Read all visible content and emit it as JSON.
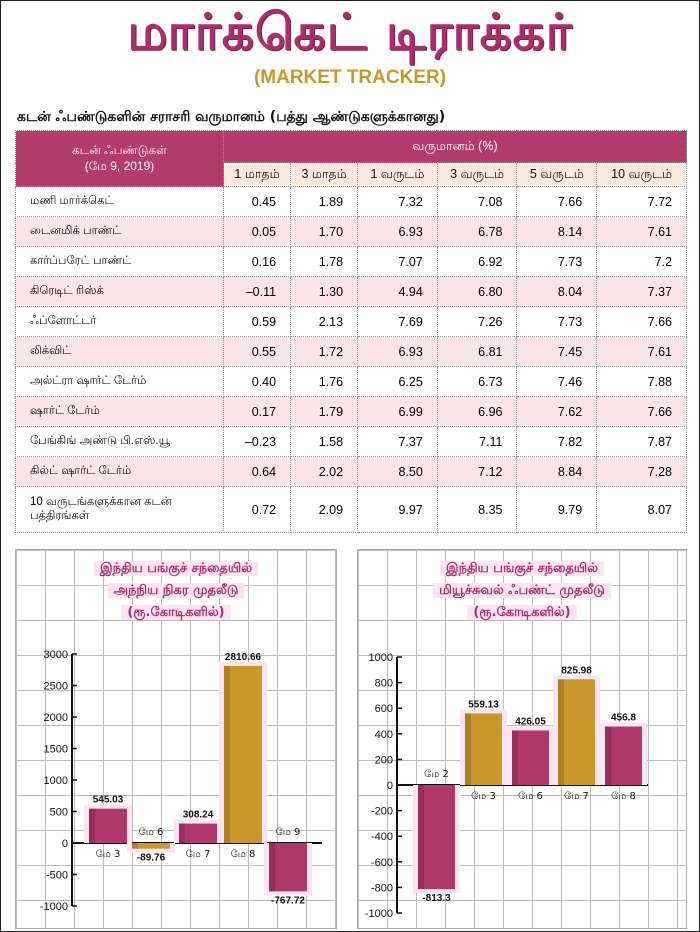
{
  "title": "மார்க்கெட் டிராக்கர்",
  "subtitle": "(MARKET TRACKER)",
  "heading": "கடன் ஃபண்டுகளின் சராசரி வருமானம் (பத்து ஆண்டுகளுக்கானது)",
  "table": {
    "name_header": "கடன் ஃபண்டுகள்",
    "date": "(மே 9, 2019)",
    "returns_header": "வருமானம் (%)",
    "columns": [
      "1 மாதம்",
      "3 மாதம்",
      "1 வருடம்",
      "3 வருடம்",
      "5 வருடம்",
      "10 வருடம்"
    ],
    "rows": [
      {
        "name": "மணி மார்க்கெட்",
        "values": [
          "0.45",
          "1.89",
          "7.32",
          "7.08",
          "7.66",
          "7.72"
        ]
      },
      {
        "name": "டைனமிக் பாண்ட்",
        "values": [
          "0.05",
          "1.70",
          "6.93",
          "6.78",
          "8.14",
          "7.61"
        ]
      },
      {
        "name": "கார்ப்பரேட் பாண்ட்",
        "values": [
          "0.16",
          "1.78",
          "7.07",
          "6.92",
          "7.73",
          "7.2"
        ]
      },
      {
        "name": "கிரெடிட் ரிஸ்க்",
        "values": [
          "–0.11",
          "1.30",
          "4.94",
          "6.80",
          "8.04",
          "7.37"
        ]
      },
      {
        "name": "ஃப்ளோட்டர்",
        "values": [
          "0.59",
          "2.13",
          "7.69",
          "7.26",
          "7.73",
          "7.66"
        ]
      },
      {
        "name": "லிக்விட்",
        "values": [
          "0.55",
          "1.72",
          "6.93",
          "6.81",
          "7.45",
          "7.61"
        ]
      },
      {
        "name": "அல்ட்ரா ஷார்ட் டேர்ம்",
        "values": [
          "0.40",
          "1.76",
          "6.25",
          "6.73",
          "7.46",
          "7.88"
        ]
      },
      {
        "name": "ஷார்ட் டேர்ம்",
        "values": [
          "0.17",
          "1.79",
          "6.99",
          "6.96",
          "7.62",
          "7.66"
        ]
      },
      {
        "name": "பேங்கிங் அண்டு பி.எஸ்.யூ",
        "values": [
          "–0.23",
          "1.58",
          "7.37",
          "7.11",
          "7.82",
          "7.87"
        ]
      },
      {
        "name": "கில்ட் ஷார்ட் டேர்ம்",
        "values": [
          "0.64",
          "2.02",
          "8.50",
          "7.12",
          "8.84",
          "7.28"
        ]
      },
      {
        "name": "10 வருடங்களுக்கான கடன் பத்திரங்கள்",
        "values": [
          "0.72",
          "2.09",
          "9.97",
          "8.35",
          "9.79",
          "8.07"
        ]
      }
    ]
  },
  "colors": {
    "magenta": "#b0396b",
    "gold": "#c9972c",
    "title": "#a8306a"
  },
  "chart_data": [
    {
      "type": "bar",
      "title": [
        "இந்திய பங்குச் சந்தையில்",
        "அந்நிய நிகர முதலீடு",
        "(ரூ.கோடிகளில்)"
      ],
      "categories": [
        "மே 3",
        "மே 6",
        "மே 7",
        "மே 8",
        "மே 9"
      ],
      "values": [
        545.03,
        -89.76,
        308.24,
        2810.66,
        -767.72
      ],
      "labels": [
        "545.03",
        "-89.76",
        "308.24",
        "2810.66",
        "-767.72"
      ],
      "bar_colors": [
        "magenta",
        "gold",
        "magenta",
        "gold",
        "magenta"
      ],
      "yticks": [
        "3000",
        "2500",
        "2000",
        "1500",
        "1000",
        "500",
        "0",
        "-500",
        "-1000"
      ],
      "ylim": [
        -1000,
        3000
      ],
      "grid": true
    },
    {
      "type": "bar",
      "title": [
        "இந்திய பங்குச் சந்தையில்",
        "மியூச்சுவல் ஃபண்ட் முதலீடு",
        "(ரூ.கோடிகளில்)"
      ],
      "categories": [
        "மே 2",
        "மே 3",
        "மே 6",
        "மே 7",
        "மே 8"
      ],
      "values": [
        -813.3,
        559.13,
        426.05,
        825.98,
        456.8
      ],
      "labels": [
        "-813.3",
        "559.13",
        "426.05",
        "825.98",
        "456.8"
      ],
      "bar_colors": [
        "magenta",
        "gold",
        "magenta",
        "gold",
        "magenta"
      ],
      "yticks": [
        "1000",
        "800",
        "600",
        "400",
        "200",
        "0",
        "-200",
        "-400",
        "-600",
        "-800",
        "-1000"
      ],
      "ylim": [
        -1000,
        1000
      ],
      "grid": true
    }
  ]
}
